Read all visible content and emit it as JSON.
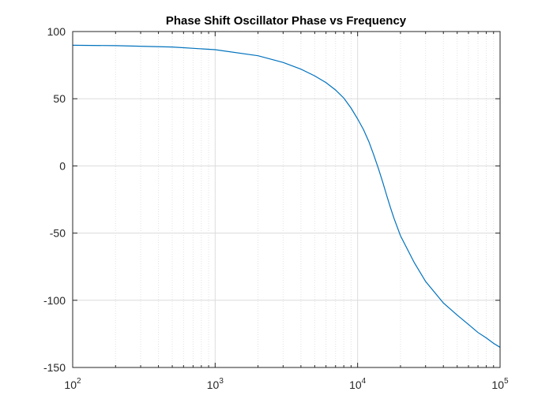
{
  "chart_data": {
    "type": "line",
    "title": "Phase Shift Oscillator Phase vs Frequency",
    "xlabel": "",
    "ylabel": "",
    "xscale": "log",
    "xlim": [
      100,
      100000
    ],
    "ylim": [
      -150,
      100
    ],
    "grid": true,
    "x_ticks": [
      {
        "base": "10",
        "exp": "2",
        "value": 100
      },
      {
        "base": "10",
        "exp": "3",
        "value": 1000
      },
      {
        "base": "10",
        "exp": "4",
        "value": 10000
      },
      {
        "base": "10",
        "exp": "5",
        "value": 100000
      }
    ],
    "y_ticks": [
      {
        "label": "100",
        "value": 100
      },
      {
        "label": "50",
        "value": 50
      },
      {
        "label": "0",
        "value": 0
      },
      {
        "label": "-50",
        "value": -50
      },
      {
        "label": "-100",
        "value": -100
      },
      {
        "label": "-150",
        "value": -150
      }
    ],
    "series": [
      {
        "color": "#0072bd",
        "x": [
          100,
          200,
          500,
          1000,
          2000,
          3000,
          4000,
          5000,
          6000,
          7000,
          8000,
          9000,
          10000,
          11000,
          12000,
          13000,
          14000,
          15000,
          16000,
          17000,
          18000,
          20000,
          25000,
          30000,
          40000,
          50000,
          60000,
          70000,
          80000,
          90000,
          100000
        ],
        "y": [
          89.8,
          89.5,
          88.5,
          86.5,
          82,
          77,
          72,
          67,
          62,
          56.5,
          50.5,
          43,
          35,
          27,
          18,
          8,
          -2,
          -12,
          -22,
          -31,
          -39,
          -52,
          -72,
          -86,
          -102,
          -111,
          -118,
          -124,
          -128,
          -132,
          -135
        ]
      }
    ]
  }
}
